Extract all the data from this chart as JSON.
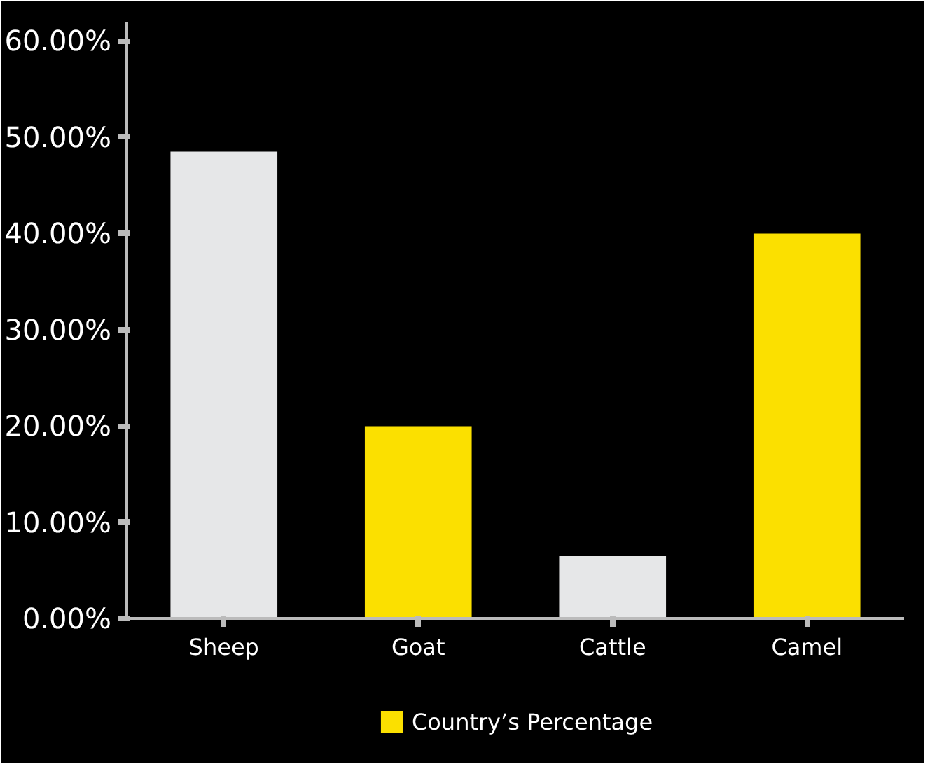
{
  "chart_data": {
    "type": "bar",
    "categories": [
      "Sheep",
      "Goat",
      "Cattle",
      "Camel"
    ],
    "series": [
      {
        "name": "Country’s Percentage",
        "colors": [
          "#e6e7e8",
          "#fbe000",
          "#e6e7e8",
          "#fbe000"
        ],
        "values": [
          48.5,
          20,
          6.5,
          40
        ]
      }
    ],
    "ylim": [
      0,
      62
    ],
    "yticks": [
      {
        "value": 0,
        "label": "0.00%"
      },
      {
        "value": 10,
        "label": "10.00%"
      },
      {
        "value": 20,
        "label": "20.00%"
      },
      {
        "value": 30,
        "label": "30.00%"
      },
      {
        "value": 40,
        "label": "40.00%"
      },
      {
        "value": 50,
        "label": "50.00%"
      },
      {
        "value": 60,
        "label": "60.00%"
      }
    ],
    "grid": false,
    "legend": "bottom"
  }
}
